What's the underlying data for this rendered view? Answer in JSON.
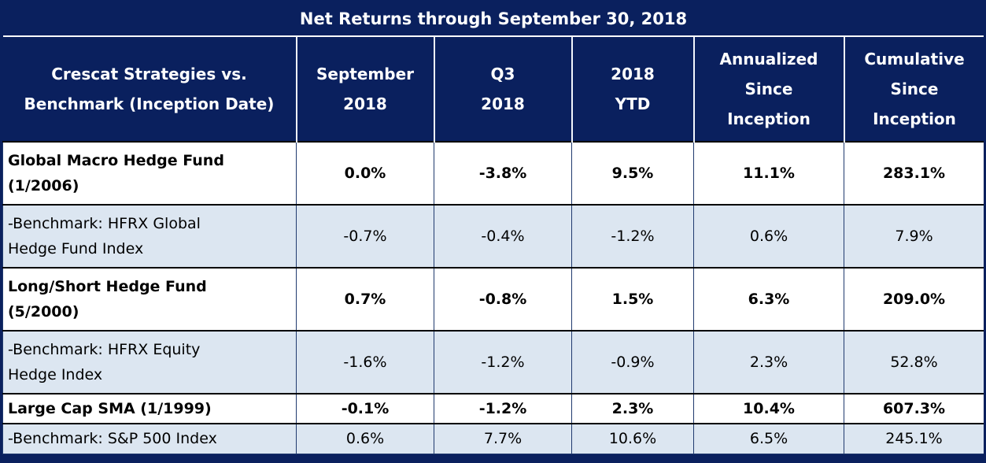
{
  "title": "Net Returns through September 30, 2018",
  "headers": [
    "Crescat Strategies vs.\nBenchmark (Inception Date)",
    "September\n2018",
    "Q3\n2018",
    "2018\nYTD",
    "Annualized\nSince\nInception",
    "Cumulative\nSince\nInception"
  ],
  "rows": [
    {
      "label": "Global Macro Hedge Fund\n(1/2006)",
      "values": [
        "0.0%",
        "-3.8%",
        "9.5%",
        "11.1%",
        "283.1%"
      ]
    },
    {
      "label": "-Benchmark: HFRX Global\nHedge Fund Index",
      "values": [
        "-0.7%",
        "-0.4%",
        "-1.2%",
        "0.6%",
        "7.9%"
      ]
    },
    {
      "label": "Long/Short Hedge Fund\n(5/2000)",
      "values": [
        "0.7%",
        "-0.8%",
        "1.5%",
        "6.3%",
        "209.0%"
      ]
    },
    {
      "label": "-Benchmark: HFRX Equity\nHedge Index",
      "values": [
        "-1.6%",
        "-1.2%",
        "-0.9%",
        "2.3%",
        "52.8%"
      ]
    },
    {
      "label": "Large Cap SMA (1/1999)",
      "values": [
        "-0.1%",
        "-1.2%",
        "2.3%",
        "10.4%",
        "607.3%"
      ]
    },
    {
      "label": "-Benchmark: S&P 500 Index",
      "values": [
        "0.6%",
        "7.7%",
        "10.6%",
        "6.5%",
        "245.1%"
      ]
    }
  ],
  "colors": {
    "navy_header": "#0A205E",
    "benchmark_row_bg": "#DCE6F1",
    "fund_row_bg": "#FFFFFF",
    "header_text": "#FFFFFF",
    "body_text": "#000000"
  },
  "chart_data": {
    "type": "table",
    "title": "Net Returns through September 30, 2018",
    "columns": [
      "Crescat Strategies vs. Benchmark (Inception Date)",
      "September 2018",
      "Q3 2018",
      "2018 YTD",
      "Annualized Since Inception",
      "Cumulative Since Inception"
    ],
    "rows": [
      [
        "Global Macro Hedge Fund (1/2006)",
        "0.0%",
        "-3.8%",
        "9.5%",
        "11.1%",
        "283.1%"
      ],
      [
        "-Benchmark: HFRX Global Hedge Fund Index",
        "-0.7%",
        "-0.4%",
        "-1.2%",
        "0.6%",
        "7.9%"
      ],
      [
        "Long/Short Hedge Fund (5/2000)",
        "0.7%",
        "-0.8%",
        "1.5%",
        "6.3%",
        "209.0%"
      ],
      [
        "-Benchmark: HFRX Equity Hedge Index",
        "-1.6%",
        "-1.2%",
        "-0.9%",
        "2.3%",
        "52.8%"
      ],
      [
        "Large Cap SMA (1/1999)",
        "-0.1%",
        "-1.2%",
        "2.3%",
        "10.4%",
        "607.3%"
      ],
      [
        "-Benchmark: S&P 500 Index",
        "0.6%",
        "7.7%",
        "10.6%",
        "6.5%",
        "245.1%"
      ]
    ]
  }
}
